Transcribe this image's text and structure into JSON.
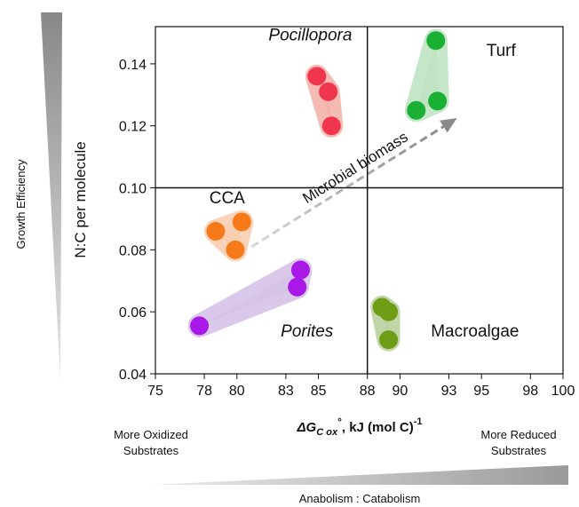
{
  "chart_data": {
    "type": "scatter",
    "title": "",
    "xlabel": "ΔG",
    "xlabel_sub": "C ox",
    "xlabel_sup": "°",
    "xlabel_units": ",  kJ (mol C)",
    "xlabel_units_sup": "-1",
    "ylabel": "N:C per molecule",
    "xlim": [
      75,
      100
    ],
    "ylim": [
      0.04,
      0.152
    ],
    "x_ticks": [
      75,
      78,
      80,
      83,
      85,
      88,
      90,
      93,
      95,
      98,
      100
    ],
    "y_ticks": [
      0.04,
      0.06,
      0.08,
      0.1,
      0.12,
      0.14
    ],
    "y_tick_labels": [
      "0.04",
      "0.06",
      "0.08",
      "0.10",
      "0.12",
      "0.14"
    ],
    "quadrant_lines": {
      "x": 88,
      "y": 0.1
    },
    "grid": false,
    "series": [
      {
        "name": "Pocillopora",
        "italic": true,
        "color": "#f0364f",
        "halo": "#f4b3a8",
        "points": [
          [
            84.9,
            0.136
          ],
          [
            85.6,
            0.131
          ],
          [
            85.8,
            0.12
          ]
        ],
        "label_at": [
          84.5,
          0.1475
        ]
      },
      {
        "name": "Turf",
        "italic": false,
        "color": "#19b033",
        "halo": "#bfe3c2",
        "points": [
          [
            92.2,
            0.1475
          ],
          [
            91.0,
            0.125
          ],
          [
            92.3,
            0.128
          ]
        ],
        "label_at": [
          96.2,
          0.1425
        ]
      },
      {
        "name": "CCA",
        "italic": false,
        "color": "#f77a1a",
        "halo": "#f8cdb0",
        "points": [
          [
            80.3,
            0.089
          ],
          [
            78.7,
            0.086
          ],
          [
            79.9,
            0.08
          ]
        ],
        "label_at": [
          79.4,
          0.095
        ]
      },
      {
        "name": "Porites",
        "italic": true,
        "color": "#a818e6",
        "halo": "#d5c2e8",
        "points": [
          [
            77.7,
            0.0555
          ],
          [
            83.9,
            0.0735
          ],
          [
            83.7,
            0.068
          ]
        ],
        "label_at": [
          84.3,
          0.052
        ]
      },
      {
        "name": "Macroalgae",
        "italic": false,
        "color": "#6f9c15",
        "halo": "#b9d29e",
        "points": [
          [
            88.9,
            0.0615
          ],
          [
            89.3,
            0.06
          ],
          [
            89.3,
            0.051
          ]
        ],
        "label_at": [
          94.6,
          0.052
        ]
      }
    ],
    "annotations": {
      "arrow_label": "Microbial biomass",
      "arrow_from": [
        80.9,
        0.081
      ],
      "arrow_to": [
        93.5,
        0.1225
      ]
    }
  },
  "side_labels": {
    "left": "Growth Efficiency",
    "bottom_left": [
      "More Oxidized",
      "Substrates"
    ],
    "bottom_right": [
      "More Reduced",
      "Substrates"
    ],
    "bottom": "Anabolism : Catabolism"
  }
}
